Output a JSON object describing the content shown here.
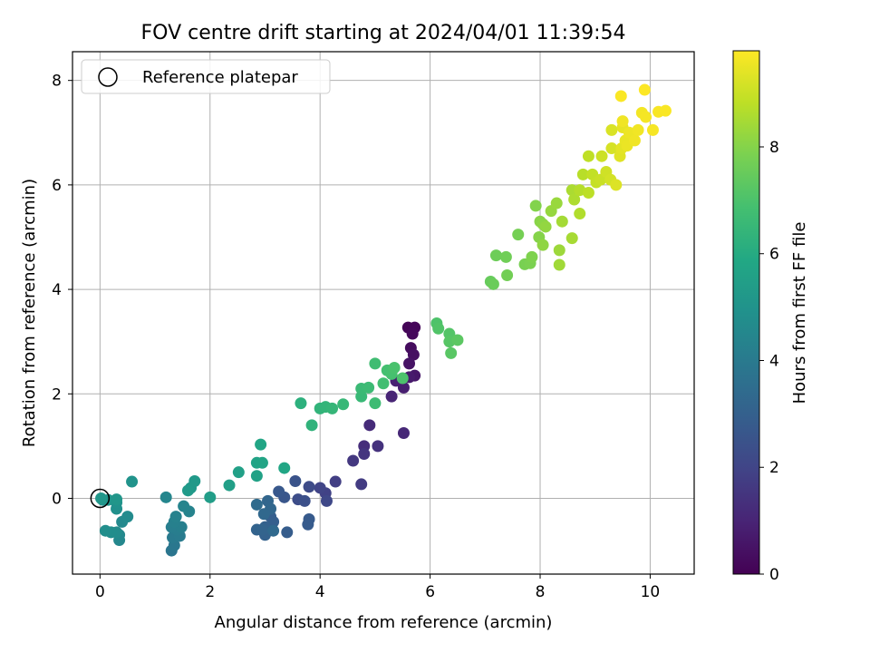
{
  "chart_data": {
    "type": "scatter",
    "title": "FOV centre drift starting at 2024/04/01 11:39:54",
    "xlabel": "Angular distance from reference (arcmin)",
    "ylabel": "Rotation from reference (arcmin)",
    "xlim": [
      -0.5,
      10.8
    ],
    "ylim": [
      -1.45,
      8.55
    ],
    "xticks": [
      0,
      2,
      4,
      6,
      8,
      10
    ],
    "yticks": [
      0,
      2,
      4,
      6,
      8
    ],
    "grid": true,
    "legend": {
      "position": "top-left",
      "entries": [
        "Reference platepar"
      ]
    },
    "colorbar": {
      "label": "Hours from first FF file",
      "min": 0,
      "max": 9.8,
      "ticks": [
        0,
        2,
        4,
        6,
        8
      ],
      "colormap": "viridis"
    },
    "reference_point": {
      "x": 0,
      "y": 0
    },
    "points": [
      {
        "x": 5.6,
        "y": 3.27,
        "t": 0.1
      },
      {
        "x": 5.72,
        "y": 3.27,
        "t": 0.15
      },
      {
        "x": 5.68,
        "y": 3.15,
        "t": 0.2
      },
      {
        "x": 5.65,
        "y": 2.88,
        "t": 0.3
      },
      {
        "x": 5.7,
        "y": 2.75,
        "t": 0.4
      },
      {
        "x": 5.62,
        "y": 2.58,
        "t": 0.5
      },
      {
        "x": 5.72,
        "y": 2.35,
        "t": 0.6
      },
      {
        "x": 5.62,
        "y": 2.32,
        "t": 0.7
      },
      {
        "x": 5.52,
        "y": 2.12,
        "t": 0.8
      },
      {
        "x": 5.38,
        "y": 2.25,
        "t": 0.9
      },
      {
        "x": 5.3,
        "y": 1.95,
        "t": 1.0
      },
      {
        "x": 5.52,
        "y": 1.25,
        "t": 1.1
      },
      {
        "x": 4.9,
        "y": 1.4,
        "t": 1.2
      },
      {
        "x": 4.8,
        "y": 1.0,
        "t": 1.3
      },
      {
        "x": 5.05,
        "y": 1.0,
        "t": 1.4
      },
      {
        "x": 4.8,
        "y": 0.85,
        "t": 1.5
      },
      {
        "x": 4.6,
        "y": 0.72,
        "t": 1.6
      },
      {
        "x": 4.75,
        "y": 0.27,
        "t": 1.7
      },
      {
        "x": 4.28,
        "y": 0.32,
        "t": 1.8
      },
      {
        "x": 4.1,
        "y": 0.1,
        "t": 1.9
      },
      {
        "x": 4.0,
        "y": 0.2,
        "t": 2.0
      },
      {
        "x": 4.12,
        "y": -0.05,
        "t": 2.1
      },
      {
        "x": 3.8,
        "y": 0.22,
        "t": 2.2
      },
      {
        "x": 3.6,
        "y": -0.02,
        "t": 2.3
      },
      {
        "x": 3.72,
        "y": -0.05,
        "t": 2.4
      },
      {
        "x": 3.55,
        "y": 0.33,
        "t": 2.5
      },
      {
        "x": 3.35,
        "y": 0.02,
        "t": 2.6
      },
      {
        "x": 3.25,
        "y": 0.13,
        "t": 2.7
      },
      {
        "x": 3.8,
        "y": -0.4,
        "t": 2.75
      },
      {
        "x": 3.78,
        "y": -0.5,
        "t": 2.8
      },
      {
        "x": 3.4,
        "y": -0.65,
        "t": 2.85
      },
      {
        "x": 3.1,
        "y": -0.35,
        "t": 2.9
      },
      {
        "x": 3.15,
        "y": -0.45,
        "t": 2.95
      },
      {
        "x": 3.0,
        "y": -0.55,
        "t": 3.0
      },
      {
        "x": 3.0,
        "y": -0.7,
        "t": 3.05
      },
      {
        "x": 2.85,
        "y": -0.6,
        "t": 3.1
      },
      {
        "x": 2.95,
        "y": -0.6,
        "t": 3.15
      },
      {
        "x": 3.05,
        "y": -0.05,
        "t": 3.2
      },
      {
        "x": 3.1,
        "y": -0.2,
        "t": 3.25
      },
      {
        "x": 2.98,
        "y": -0.3,
        "t": 3.3
      },
      {
        "x": 3.15,
        "y": -0.62,
        "t": 3.35
      },
      {
        "x": 2.85,
        "y": -0.12,
        "t": 3.4
      },
      {
        "x": 1.3,
        "y": -1.0,
        "t": 3.8
      },
      {
        "x": 1.35,
        "y": -0.9,
        "t": 3.9
      },
      {
        "x": 1.32,
        "y": -0.75,
        "t": 4.0
      },
      {
        "x": 1.45,
        "y": -0.72,
        "t": 4.05
      },
      {
        "x": 1.4,
        "y": -0.6,
        "t": 4.1
      },
      {
        "x": 1.3,
        "y": -0.55,
        "t": 4.15
      },
      {
        "x": 1.48,
        "y": -0.55,
        "t": 4.2
      },
      {
        "x": 1.35,
        "y": -0.45,
        "t": 4.25
      },
      {
        "x": 1.38,
        "y": -0.35,
        "t": 4.3
      },
      {
        "x": 1.62,
        "y": -0.25,
        "t": 4.35
      },
      {
        "x": 1.52,
        "y": -0.15,
        "t": 4.4
      },
      {
        "x": 1.2,
        "y": 0.02,
        "t": 4.45
      },
      {
        "x": 0.35,
        "y": -0.8,
        "t": 4.5
      },
      {
        "x": 0.35,
        "y": -0.7,
        "t": 4.55
      },
      {
        "x": 0.4,
        "y": -0.45,
        "t": 4.6
      },
      {
        "x": 0.5,
        "y": -0.35,
        "t": 4.65
      },
      {
        "x": 0.3,
        "y": -0.65,
        "t": 4.7
      },
      {
        "x": 0.2,
        "y": -0.65,
        "t": 4.75
      },
      {
        "x": 0.1,
        "y": -0.62,
        "t": 4.8
      },
      {
        "x": 0.3,
        "y": -0.2,
        "t": 4.85
      },
      {
        "x": 0.3,
        "y": -0.08,
        "t": 4.9
      },
      {
        "x": 0.05,
        "y": -0.03,
        "t": 4.95
      },
      {
        "x": 0.58,
        "y": 0.32,
        "t": 5.0
      },
      {
        "x": 0.15,
        "y": -0.03,
        "t": 5.05
      },
      {
        "x": 0.3,
        "y": -0.02,
        "t": 5.1
      },
      {
        "x": 0.02,
        "y": 0.0,
        "t": 5.15
      },
      {
        "x": 1.65,
        "y": 0.2,
        "t": 5.2
      },
      {
        "x": 1.72,
        "y": 0.33,
        "t": 5.25
      },
      {
        "x": 1.6,
        "y": 0.15,
        "t": 5.3
      },
      {
        "x": 2.0,
        "y": 0.02,
        "t": 5.4
      },
      {
        "x": 2.35,
        "y": 0.25,
        "t": 5.5
      },
      {
        "x": 2.52,
        "y": 0.5,
        "t": 5.55
      },
      {
        "x": 2.85,
        "y": 0.43,
        "t": 5.6
      },
      {
        "x": 2.85,
        "y": 0.68,
        "t": 5.65
      },
      {
        "x": 2.95,
        "y": 0.68,
        "t": 5.7
      },
      {
        "x": 2.92,
        "y": 1.03,
        "t": 5.75
      },
      {
        "x": 3.35,
        "y": 0.58,
        "t": 5.8
      },
      {
        "x": 3.65,
        "y": 1.82,
        "t": 6.2
      },
      {
        "x": 3.85,
        "y": 1.4,
        "t": 6.3
      },
      {
        "x": 4.0,
        "y": 1.72,
        "t": 6.35
      },
      {
        "x": 4.1,
        "y": 1.75,
        "t": 6.4
      },
      {
        "x": 4.22,
        "y": 1.72,
        "t": 6.45
      },
      {
        "x": 4.42,
        "y": 1.8,
        "t": 6.5
      },
      {
        "x": 4.75,
        "y": 1.95,
        "t": 6.55
      },
      {
        "x": 4.75,
        "y": 2.1,
        "t": 6.6
      },
      {
        "x": 4.88,
        "y": 2.12,
        "t": 6.65
      },
      {
        "x": 5.0,
        "y": 1.82,
        "t": 6.7
      },
      {
        "x": 5.0,
        "y": 2.58,
        "t": 6.75
      },
      {
        "x": 5.15,
        "y": 2.2,
        "t": 6.8
      },
      {
        "x": 5.22,
        "y": 2.45,
        "t": 6.85
      },
      {
        "x": 5.3,
        "y": 2.38,
        "t": 6.9
      },
      {
        "x": 5.35,
        "y": 2.5,
        "t": 6.95
      },
      {
        "x": 5.5,
        "y": 2.3,
        "t": 7.0
      },
      {
        "x": 6.12,
        "y": 3.35,
        "t": 7.05
      },
      {
        "x": 6.15,
        "y": 3.25,
        "t": 7.1
      },
      {
        "x": 6.35,
        "y": 3.15,
        "t": 7.15
      },
      {
        "x": 6.35,
        "y": 3.0,
        "t": 7.2
      },
      {
        "x": 6.38,
        "y": 2.78,
        "t": 7.25
      },
      {
        "x": 6.5,
        "y": 3.03,
        "t": 7.3
      },
      {
        "x": 7.1,
        "y": 4.15,
        "t": 7.5
      },
      {
        "x": 7.15,
        "y": 4.1,
        "t": 7.55
      },
      {
        "x": 7.2,
        "y": 4.65,
        "t": 7.6
      },
      {
        "x": 7.38,
        "y": 4.62,
        "t": 7.65
      },
      {
        "x": 7.4,
        "y": 4.27,
        "t": 7.7
      },
      {
        "x": 7.6,
        "y": 5.05,
        "t": 7.75
      },
      {
        "x": 7.72,
        "y": 4.48,
        "t": 7.8
      },
      {
        "x": 7.82,
        "y": 4.5,
        "t": 7.85
      },
      {
        "x": 7.85,
        "y": 4.62,
        "t": 7.9
      },
      {
        "x": 7.92,
        "y": 5.6,
        "t": 7.95
      },
      {
        "x": 7.98,
        "y": 5.0,
        "t": 8.0
      },
      {
        "x": 8.0,
        "y": 5.3,
        "t": 8.05
      },
      {
        "x": 8.05,
        "y": 5.25,
        "t": 8.1
      },
      {
        "x": 8.05,
        "y": 4.85,
        "t": 8.15
      },
      {
        "x": 8.1,
        "y": 5.2,
        "t": 8.2
      },
      {
        "x": 8.2,
        "y": 5.5,
        "t": 8.25
      },
      {
        "x": 8.3,
        "y": 5.65,
        "t": 8.3
      },
      {
        "x": 8.35,
        "y": 4.75,
        "t": 8.35
      },
      {
        "x": 8.35,
        "y": 4.47,
        "t": 8.4
      },
      {
        "x": 8.4,
        "y": 5.3,
        "t": 8.45
      },
      {
        "x": 8.58,
        "y": 4.98,
        "t": 8.5
      },
      {
        "x": 8.58,
        "y": 5.9,
        "t": 8.55
      },
      {
        "x": 8.62,
        "y": 5.72,
        "t": 8.6
      },
      {
        "x": 8.72,
        "y": 5.45,
        "t": 8.65
      },
      {
        "x": 8.72,
        "y": 5.9,
        "t": 8.7
      },
      {
        "x": 8.78,
        "y": 6.2,
        "t": 8.75
      },
      {
        "x": 8.88,
        "y": 5.85,
        "t": 8.8
      },
      {
        "x": 8.88,
        "y": 6.55,
        "t": 8.85
      },
      {
        "x": 8.95,
        "y": 6.2,
        "t": 8.9
      },
      {
        "x": 9.02,
        "y": 6.05,
        "t": 8.95
      },
      {
        "x": 9.1,
        "y": 6.1,
        "t": 9.0
      },
      {
        "x": 9.12,
        "y": 6.55,
        "t": 9.05
      },
      {
        "x": 9.2,
        "y": 6.25,
        "t": 9.1
      },
      {
        "x": 9.28,
        "y": 6.1,
        "t": 9.15
      },
      {
        "x": 9.3,
        "y": 6.7,
        "t": 9.2
      },
      {
        "x": 9.3,
        "y": 7.05,
        "t": 9.25
      },
      {
        "x": 9.38,
        "y": 6.0,
        "t": 9.3
      },
      {
        "x": 9.45,
        "y": 6.55,
        "t": 9.35
      },
      {
        "x": 9.48,
        "y": 6.7,
        "t": 9.4
      },
      {
        "x": 9.5,
        "y": 7.1,
        "t": 9.45
      },
      {
        "x": 9.55,
        "y": 6.85,
        "t": 9.5
      },
      {
        "x": 9.58,
        "y": 6.75,
        "t": 9.52
      },
      {
        "x": 9.62,
        "y": 7.0,
        "t": 9.55
      },
      {
        "x": 9.72,
        "y": 6.85,
        "t": 9.6
      },
      {
        "x": 9.78,
        "y": 7.05,
        "t": 9.62
      },
      {
        "x": 9.85,
        "y": 7.38,
        "t": 9.65
      },
      {
        "x": 9.92,
        "y": 7.3,
        "t": 9.68
      },
      {
        "x": 10.05,
        "y": 7.05,
        "t": 9.7
      },
      {
        "x": 10.15,
        "y": 7.4,
        "t": 9.72
      },
      {
        "x": 10.28,
        "y": 7.42,
        "t": 9.74
      },
      {
        "x": 9.47,
        "y": 7.7,
        "t": 9.76
      },
      {
        "x": 9.9,
        "y": 7.82,
        "t": 9.78
      },
      {
        "x": 9.5,
        "y": 7.22,
        "t": 9.6
      }
    ]
  }
}
